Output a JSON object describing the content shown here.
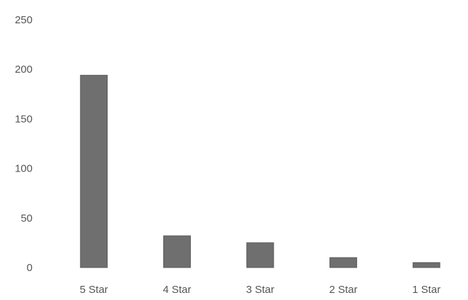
{
  "chart_data": {
    "type": "bar",
    "categories": [
      "5 Star",
      "4 Star",
      "3 Star",
      "2 Star",
      "1 Star"
    ],
    "values": [
      194,
      32,
      25,
      10,
      5
    ],
    "title": "",
    "xlabel": "",
    "ylabel": "",
    "ylim": [
      0,
      250
    ],
    "yticks": [
      0,
      50,
      100,
      150,
      200,
      250
    ],
    "grid": false,
    "colors": {
      "bar": "#6f6f6f",
      "bar_edge": "#5a5a5a",
      "text": "#555555"
    }
  }
}
